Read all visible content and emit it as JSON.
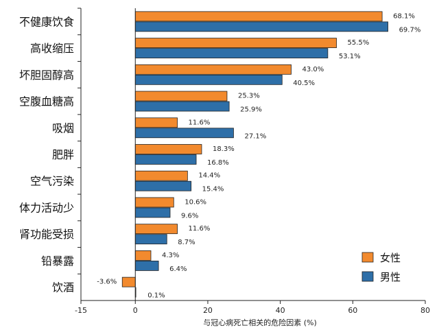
{
  "chart_data": {
    "type": "bar",
    "orientation": "horizontal",
    "categories": [
      "不健康饮食",
      "高收缩压",
      "坏胆固醇高",
      "空腹血糖高",
      "吸烟",
      "肥胖",
      "空气污染",
      "体力活动少",
      "肾功能受损",
      "铅暴露",
      "饮酒"
    ],
    "series": [
      {
        "name": "女性",
        "color": "#f28a2e",
        "values": [
          68.1,
          55.5,
          43.0,
          25.3,
          11.6,
          18.3,
          14.4,
          10.6,
          11.6,
          4.3,
          -3.6
        ],
        "labels": [
          "68.1%",
          "55.5%",
          "43.0%",
          "25.3%",
          "11.6%",
          "18.3%",
          "14.4%",
          "10.6%",
          "11.6%",
          "4.3%",
          "-3.6%"
        ]
      },
      {
        "name": "男性",
        "color": "#2e6fa8",
        "values": [
          69.7,
          53.1,
          40.5,
          25.9,
          27.1,
          16.8,
          15.4,
          9.6,
          8.7,
          6.4,
          0.1
        ],
        "labels": [
          "69.7%",
          "53.1%",
          "40.5%",
          "25.9%",
          "27.1%",
          "16.8%",
          "15.4%",
          "9.6%",
          "8.7%",
          "6.4%",
          "0.1%"
        ]
      }
    ],
    "xlabel": "与冠心病死亡相关的危险因素 (%)",
    "ylabel": "",
    "xlim": [
      -15,
      80
    ],
    "xticks": [
      -15,
      0,
      20,
      40,
      60,
      80
    ],
    "xtick_labels": [
      "-15",
      "0",
      "20",
      "40",
      "60",
      "80"
    ],
    "grid": false,
    "legend_position": "bottom-right"
  }
}
